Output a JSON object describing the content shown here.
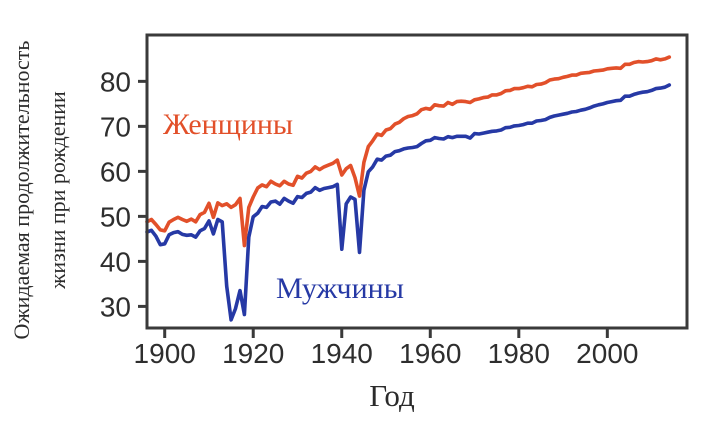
{
  "figure": {
    "background": "#ffffff"
  },
  "chart_data": {
    "type": "line",
    "title": "",
    "xlabel": "Год",
    "ylabel": "Ожидаемая продолжительность жизни при рождении",
    "ylabel_lines": [
      "Ожидаемая продолжительность",
      "жизни при рождении"
    ],
    "x_start": 1896,
    "x_end": 2014,
    "x_step": 1,
    "x_ticks": [
      1900,
      1920,
      1940,
      1960,
      1980,
      2000
    ],
    "y_ticks": [
      30,
      40,
      50,
      60,
      70,
      80
    ],
    "xlim": [
      1896,
      2018
    ],
    "ylim": [
      25.2,
      90.3
    ],
    "grid": false,
    "legend_position": "inline-annotations",
    "axis_color": "#3a3a3a",
    "tick_label_color": "#2e2e2e",
    "series": [
      {
        "name": "Женщины",
        "color": "#e2502a",
        "values": [
          48.8,
          49.3,
          48.2,
          47.0,
          46.8,
          48.7,
          49.3,
          49.8,
          49.3,
          48.9,
          49.4,
          48.8,
          50.4,
          50.9,
          52.9,
          49.8,
          53.0,
          52.4,
          52.8,
          52.0,
          52.6,
          54.0,
          43.5,
          52.0,
          54.3,
          56.3,
          57.0,
          56.6,
          57.8,
          57.2,
          56.8,
          57.8,
          57.2,
          56.9,
          58.9,
          58.5,
          59.6,
          60.0,
          61.0,
          60.4,
          61.0,
          61.4,
          61.8,
          62.5,
          59.2,
          60.6,
          61.3,
          58.6,
          54.5,
          62.0,
          65.5,
          66.8,
          68.3,
          68.0,
          69.2,
          69.5,
          70.5,
          70.9,
          71.7,
          72.2,
          72.4,
          72.8,
          73.7,
          74.0,
          73.8,
          74.8,
          74.6,
          74.5,
          75.3,
          74.9,
          75.5,
          75.6,
          75.5,
          75.3,
          75.9,
          76.1,
          76.4,
          76.5,
          77.0,
          77.0,
          77.3,
          77.9,
          78.0,
          78.4,
          78.4,
          78.6,
          78.9,
          78.8,
          79.3,
          79.4,
          79.7,
          80.3,
          80.5,
          80.6,
          80.9,
          81.1,
          81.4,
          81.4,
          81.8,
          81.9,
          82.0,
          82.3,
          82.4,
          82.5,
          82.8,
          82.9,
          83.0,
          82.9,
          83.8,
          83.8,
          84.2,
          84.4,
          84.3,
          84.4,
          84.6,
          85.0,
          84.8,
          85.0,
          85.4
        ]
      },
      {
        "name": "Мужчины",
        "color": "#2639a5",
        "values": [
          46.5,
          46.9,
          45.6,
          43.7,
          43.9,
          45.9,
          46.4,
          46.6,
          46.0,
          45.8,
          45.9,
          45.4,
          46.8,
          47.3,
          49.0,
          46.1,
          49.3,
          48.8,
          34.5,
          27.0,
          29.5,
          33.5,
          28.2,
          45.4,
          49.9,
          50.7,
          52.2,
          52.0,
          53.2,
          53.4,
          52.7,
          54.0,
          53.4,
          52.9,
          54.4,
          54.2,
          55.1,
          55.4,
          56.4,
          55.8,
          56.2,
          56.4,
          56.6,
          57.1,
          42.7,
          52.8,
          54.3,
          53.8,
          42.0,
          55.8,
          59.9,
          61.0,
          62.7,
          62.5,
          63.4,
          63.6,
          64.4,
          64.6,
          65.0,
          65.2,
          65.3,
          65.5,
          66.2,
          66.8,
          66.9,
          67.5,
          67.3,
          67.2,
          67.7,
          67.5,
          67.8,
          67.8,
          67.8,
          67.4,
          68.4,
          68.3,
          68.5,
          68.7,
          68.9,
          69.0,
          69.2,
          69.7,
          69.8,
          70.1,
          70.2,
          70.4,
          70.7,
          70.7,
          71.2,
          71.3,
          71.5,
          72.0,
          72.3,
          72.5,
          72.7,
          72.9,
          73.2,
          73.3,
          73.6,
          73.8,
          74.1,
          74.5,
          74.8,
          75.0,
          75.3,
          75.5,
          75.7,
          75.8,
          76.7,
          76.7,
          77.1,
          77.4,
          77.6,
          77.7,
          78.0,
          78.4,
          78.5,
          78.7,
          79.2
        ]
      }
    ]
  }
}
